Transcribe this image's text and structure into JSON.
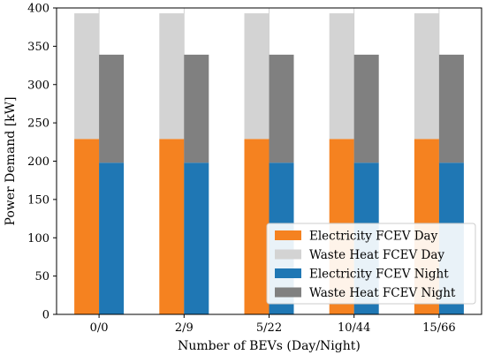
{
  "chart_data": {
    "type": "bar",
    "stacked": true,
    "categories": [
      "0/0",
      "2/9",
      "5/22",
      "10/44",
      "15/66"
    ],
    "xlabel": "Number of BEVs (Day/Night)",
    "ylabel": "Power Demand [kW]",
    "ylim": [
      0,
      400
    ],
    "yticks": [
      0,
      50,
      100,
      150,
      200,
      250,
      300,
      350,
      400
    ],
    "grid": "vertical",
    "legend_position": "bottom-right",
    "groups": [
      {
        "name": "Day",
        "stack": [
          {
            "name": "Electricity FCEV Day",
            "color": "#f58220",
            "values": [
              229,
              229,
              229,
              229,
              229
            ]
          },
          {
            "name": "Waste Heat FCEV Day",
            "color": "#d3d3d3",
            "values": [
              164,
              164,
              164,
              164,
              164
            ]
          }
        ]
      },
      {
        "name": "Night",
        "stack": [
          {
            "name": "Electricity FCEV Night",
            "color": "#1f77b4",
            "values": [
              198,
              198,
              198,
              198,
              198
            ]
          },
          {
            "name": "Waste Heat FCEV Night",
            "color": "#808080",
            "values": [
              141,
              141,
              141,
              141,
              141
            ]
          }
        ]
      }
    ],
    "legend": [
      {
        "label": "Electricity FCEV Day",
        "color": "#f58220"
      },
      {
        "label": "Waste Heat FCEV Day",
        "color": "#d3d3d3"
      },
      {
        "label": "Electricity FCEV Night",
        "color": "#1f77b4"
      },
      {
        "label": "Waste Heat FCEV Night",
        "color": "#808080"
      }
    ]
  }
}
